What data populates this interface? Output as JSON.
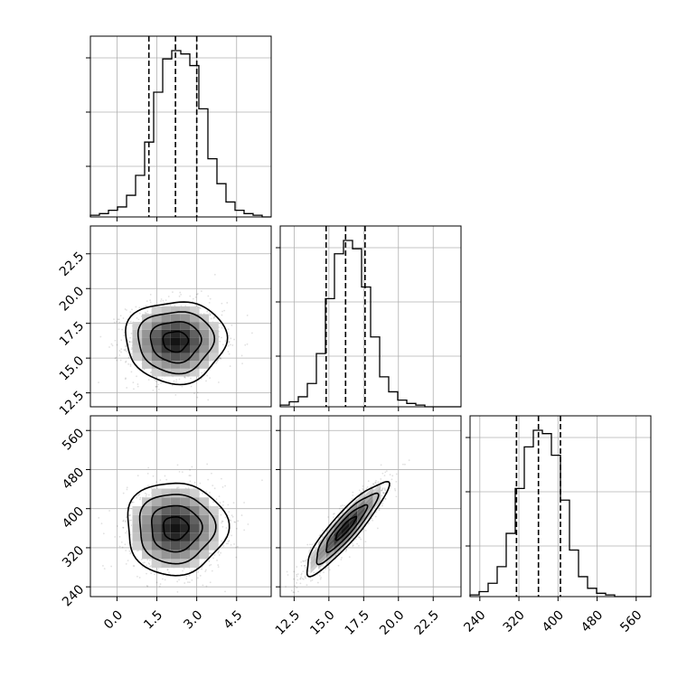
{
  "chart_data": {
    "type": "corner",
    "parameters": [
      {
        "range": [
          -1.0,
          5.8
        ],
        "ticks": [
          0.0,
          1.5,
          3.0,
          4.5
        ],
        "tick_labels": [
          "0.0",
          "1.5",
          "3.0",
          "4.5"
        ],
        "median": 2.2,
        "quantiles": [
          1.2,
          2.2,
          3.0
        ]
      },
      {
        "range": [
          11.5,
          24.5
        ],
        "ticks": [
          12.5,
          15.0,
          17.5,
          20.0,
          22.5
        ],
        "tick_labels": [
          "12.5",
          "15.0",
          "17.5",
          "20.0",
          "22.5"
        ],
        "median": 16.2,
        "quantiles": [
          14.8,
          16.2,
          17.6
        ]
      },
      {
        "range": [
          220,
          590
        ],
        "ticks": [
          240,
          320,
          400,
          480,
          560
        ],
        "tick_labels": [
          "240",
          "320",
          "400",
          "480",
          "560"
        ],
        "median": 360,
        "quantiles": [
          315,
          360,
          405
        ]
      }
    ],
    "histograms": [
      {
        "bin_start": -1.0,
        "bin_width": 0.34,
        "counts": [
          1,
          2,
          4,
          6,
          13,
          25,
          45,
          75,
          95,
          100,
          98,
          91,
          65,
          35,
          20,
          9,
          4,
          2,
          1,
          0
        ]
      },
      {
        "bin_start": 11.5,
        "bin_width": 0.65,
        "counts": [
          1,
          3,
          6,
          14,
          32,
          65,
          92,
          100,
          95,
          72,
          42,
          18,
          9,
          4,
          2,
          1,
          0,
          0,
          0,
          0
        ]
      },
      {
        "bin_start": 220,
        "bin_width": 18.5,
        "counts": [
          1,
          3,
          8,
          18,
          38,
          65,
          90,
          100,
          98,
          85,
          58,
          28,
          12,
          5,
          2,
          1,
          0,
          0,
          0,
          0
        ]
      }
    ],
    "pairs": [
      {
        "x": 0,
        "y": 1,
        "correlation": 0.0
      },
      {
        "x": 0,
        "y": 2,
        "correlation": 0.0
      },
      {
        "x": 1,
        "y": 2,
        "correlation": 0.9
      }
    ],
    "sigma_levels": [
      0.5,
      1.0,
      1.5,
      2.0
    ],
    "grid": true
  }
}
